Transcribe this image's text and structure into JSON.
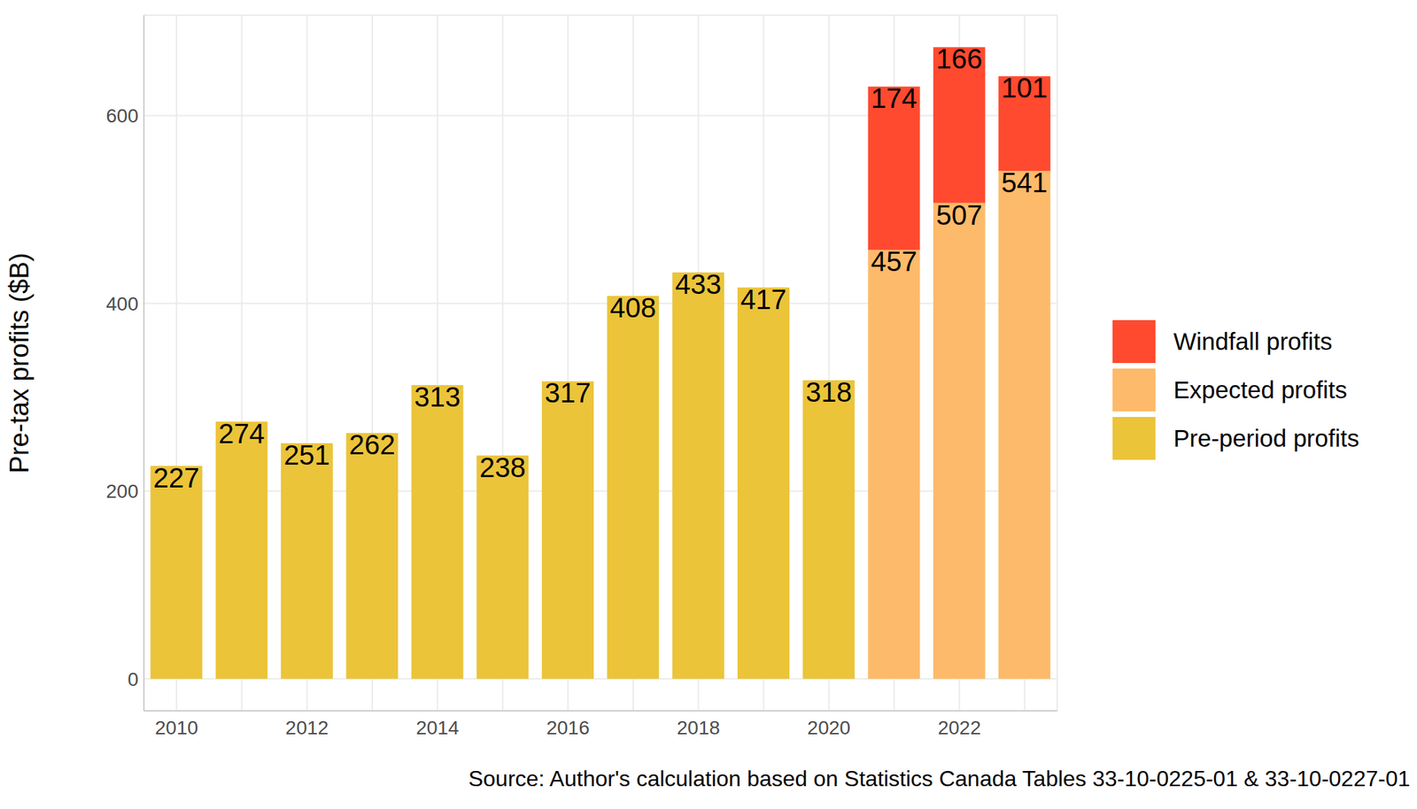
{
  "chart_data": {
    "type": "bar",
    "stacked": true,
    "data_labels": true,
    "grid": true,
    "legend": "right",
    "y_label": "Pre-tax profits ($B)",
    "caption": "Source: Author's calculation based on Statistics Canada Tables 33-10-0225-01 & 33-10-0227-01",
    "categories": [
      "2010",
      null,
      "2012",
      null,
      "2014",
      null,
      "2016",
      null,
      "2018",
      null,
      "2020",
      null,
      "2022",
      null
    ],
    "series": [
      {
        "name": "Pre-period profits",
        "color": "#EBC43A",
        "values": [
          227,
          274,
          251,
          262,
          313,
          238,
          317,
          408,
          433,
          417,
          318,
          null,
          null,
          null
        ]
      },
      {
        "name": "Expected profits",
        "color": "#FDBA6A",
        "values": [
          null,
          null,
          null,
          null,
          null,
          null,
          null,
          null,
          null,
          null,
          null,
          457,
          507,
          541
        ]
      },
      {
        "name": "Windfall profits",
        "color": "#FF4A2F",
        "values": [
          null,
          null,
          null,
          null,
          null,
          null,
          null,
          null,
          null,
          null,
          null,
          174,
          166,
          101
        ]
      }
    ],
    "ylim": [
      -34,
      707
    ],
    "yticks": [
      0,
      200,
      400,
      600
    ]
  }
}
